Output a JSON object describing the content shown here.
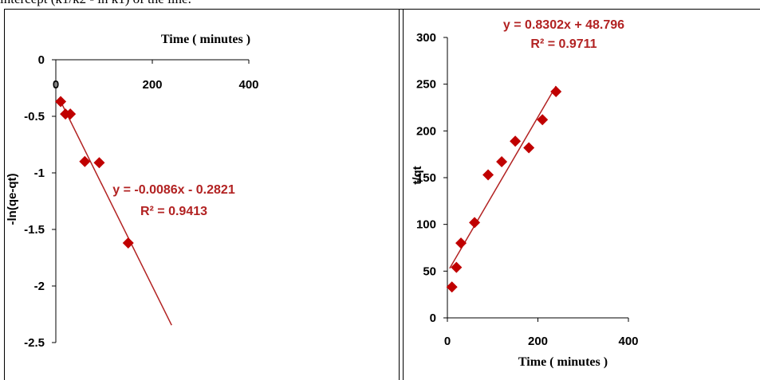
{
  "page_fragment_text": "intercept (k1/k2 - ln k1) of the line.",
  "colors": {
    "series": "#b22222",
    "marker": "#c00000"
  },
  "chart_data": [
    {
      "type": "scatter",
      "title": "",
      "xlabel": "Time ( minutes )",
      "ylabel": "-ln(qe-qt)",
      "xlim": [
        0,
        400
      ],
      "ylim": [
        -2.5,
        0
      ],
      "x_ticks": [
        0,
        200,
        400
      ],
      "x_tick_labels": [
        "0",
        "200",
        "400"
      ],
      "y_ticks": [
        0,
        -0.5,
        -1,
        -1.5,
        -2,
        -2.5
      ],
      "y_tick_labels": [
        "0",
        "-0.5",
        "-1",
        "-1.5",
        "-2",
        "-2.5"
      ],
      "x_axis_position": "top",
      "grid": false,
      "points": [
        {
          "x": 10,
          "y": -0.37
        },
        {
          "x": 20,
          "y": -0.48
        },
        {
          "x": 30,
          "y": -0.48
        },
        {
          "x": 60,
          "y": -0.9
        },
        {
          "x": 90,
          "y": -0.91
        },
        {
          "x": 150,
          "y": -1.62
        }
      ],
      "trendline": {
        "slope": -0.0086,
        "intercept": -0.2821,
        "x_from": 10,
        "x_to": 240
      },
      "equation": "y = -0.0086x - 0.2821",
      "r_squared": "R² = 0.9413"
    },
    {
      "type": "scatter",
      "title": "",
      "xlabel": "Time ( minutes )",
      "ylabel": "t/qt",
      "xlim": [
        0,
        400
      ],
      "ylim": [
        0,
        300
      ],
      "x_ticks": [
        0,
        200,
        400
      ],
      "x_tick_labels": [
        "0",
        "200",
        "400"
      ],
      "y_ticks": [
        0,
        50,
        100,
        150,
        200,
        250,
        300
      ],
      "y_tick_labels": [
        "0",
        "50",
        "100",
        "150",
        "200",
        "250",
        "300"
      ],
      "x_axis_position": "bottom",
      "grid": false,
      "points": [
        {
          "x": 10,
          "y": 33
        },
        {
          "x": 20,
          "y": 54
        },
        {
          "x": 30,
          "y": 80
        },
        {
          "x": 60,
          "y": 102
        },
        {
          "x": 90,
          "y": 153
        },
        {
          "x": 120,
          "y": 167
        },
        {
          "x": 150,
          "y": 189
        },
        {
          "x": 180,
          "y": 182
        },
        {
          "x": 210,
          "y": 212
        },
        {
          "x": 240,
          "y": 242
        }
      ],
      "trendline": {
        "slope": 0.8302,
        "intercept": 48.796,
        "x_from": 5,
        "x_to": 240
      },
      "equation": "y = 0.8302x + 48.796",
      "r_squared": "R² = 0.9711"
    }
  ]
}
